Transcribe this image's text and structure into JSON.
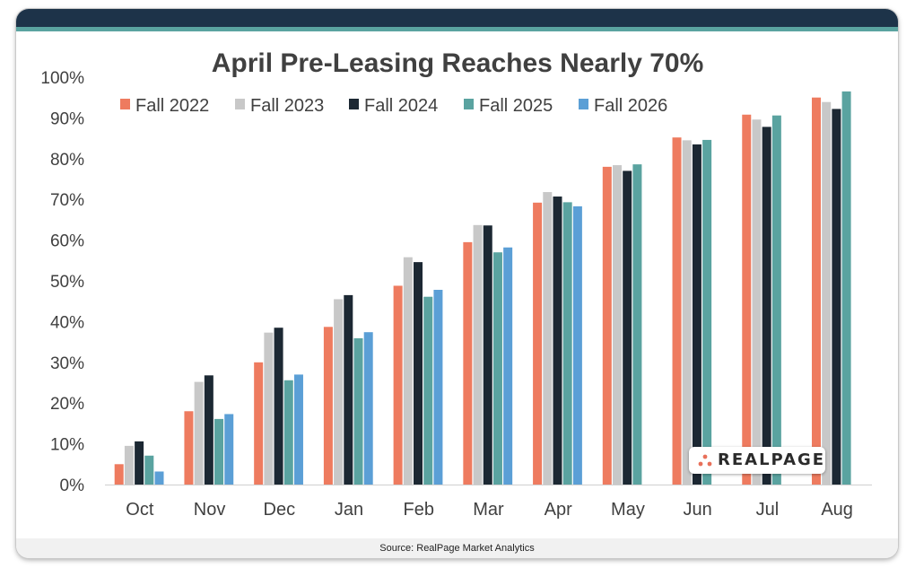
{
  "source_text": "Source: RealPage Market Analytics",
  "logo_text": "REALPAGE",
  "colors": {
    "topbar": "#1d3349",
    "accent": "#5aa3a0",
    "logo_dots": "#e8705a"
  },
  "chart_data": {
    "type": "bar",
    "title": "April Pre-Leasing Reaches Nearly 70%",
    "xlabel": "",
    "ylabel": "",
    "ylim": [
      0,
      100
    ],
    "yticks": [
      "0%",
      "10%",
      "20%",
      "30%",
      "40%",
      "50%",
      "60%",
      "70%",
      "80%",
      "90%",
      "100%"
    ],
    "grid": false,
    "legend_position": "top",
    "categories": [
      "Oct",
      "Nov",
      "Dec",
      "Jan",
      "Feb",
      "Mar",
      "Apr",
      "May",
      "Jun",
      "Jul",
      "Aug"
    ],
    "series": [
      {
        "name": "Fall 2022",
        "color": "#ee7b5f",
        "values": [
          5.0,
          18.0,
          30.0,
          38.7,
          48.8,
          59.5,
          69.2,
          78.0,
          85.2,
          90.8,
          95.0
        ]
      },
      {
        "name": "Fall 2023",
        "color": "#c8c8c8",
        "values": [
          9.5,
          25.2,
          37.3,
          45.5,
          55.8,
          63.7,
          71.8,
          78.4,
          84.5,
          89.6,
          93.9
        ]
      },
      {
        "name": "Fall 2024",
        "color": "#1c2833",
        "values": [
          10.6,
          26.8,
          38.5,
          46.5,
          54.6,
          63.6,
          70.7,
          77.0,
          83.5,
          87.8,
          92.2
        ]
      },
      {
        "name": "Fall 2025",
        "color": "#5aa3a0",
        "values": [
          7.1,
          16.1,
          25.6,
          35.9,
          46.1,
          57.0,
          69.3,
          78.6,
          84.6,
          90.6,
          96.5
        ]
      },
      {
        "name": "Fall 2026",
        "color": "#5b9fd6",
        "values": [
          3.2,
          17.3,
          27.0,
          37.4,
          47.8,
          58.2,
          68.3,
          null,
          null,
          null,
          null
        ]
      }
    ]
  }
}
